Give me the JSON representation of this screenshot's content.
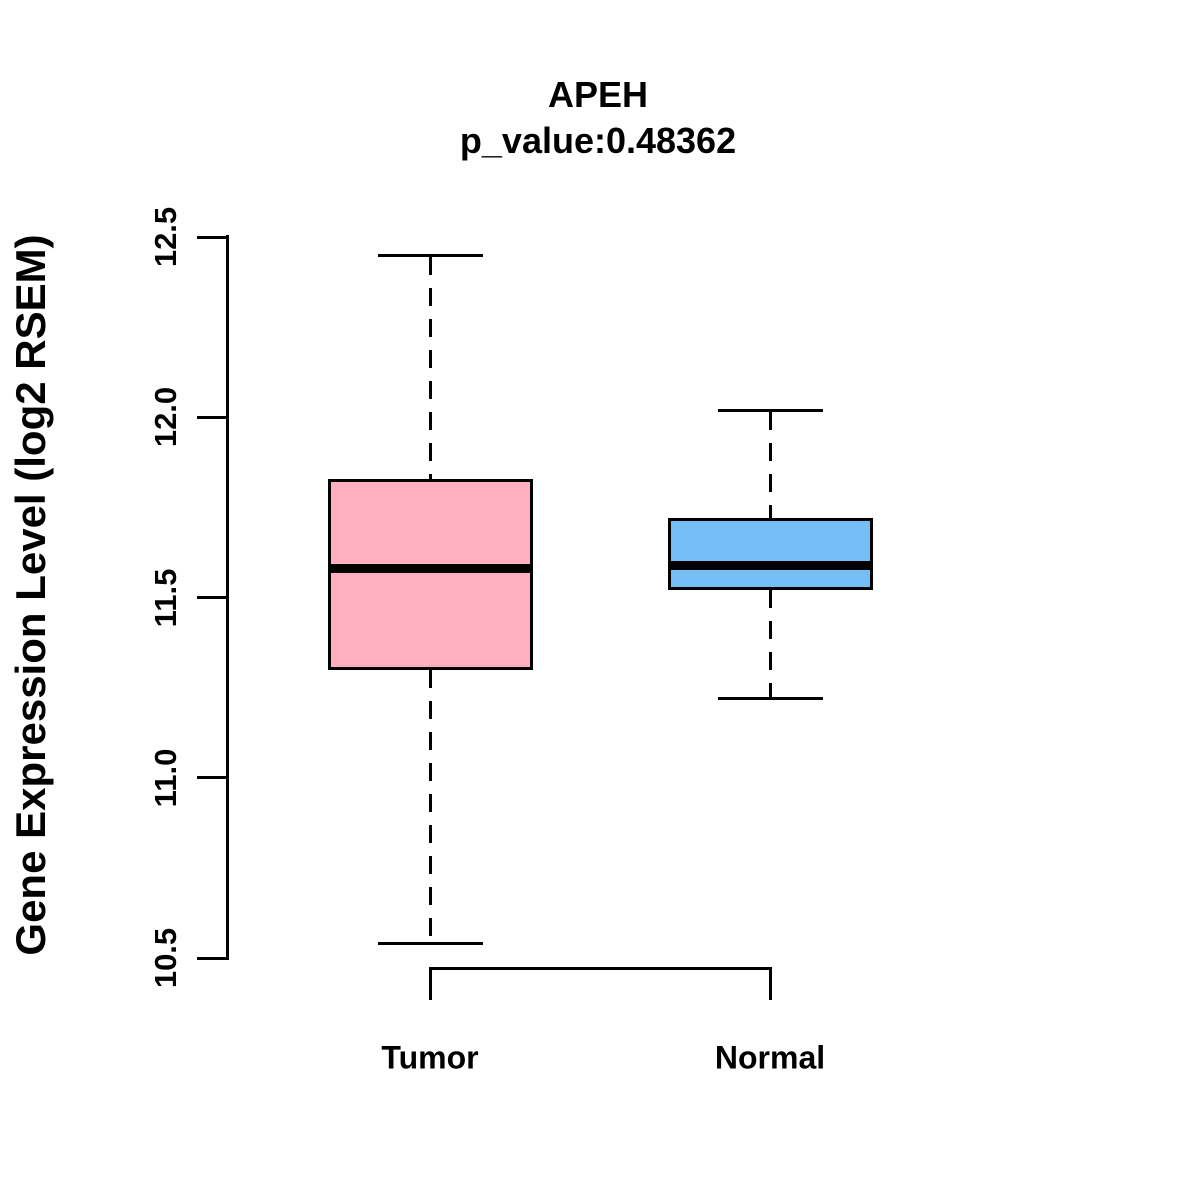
{
  "chart_data": {
    "type": "boxplot",
    "title": "APEH",
    "subtitle": "p_value:0.48362",
    "ylabel": "Gene Expression Level (log2 RSEM)",
    "xlabel": "",
    "categories": [
      "Tumor",
      "Normal"
    ],
    "ylim": [
      10.5,
      12.5
    ],
    "ytick_values": [
      10.5,
      11.0,
      11.5,
      12.0,
      12.5
    ],
    "ytick_labels": [
      "10.5",
      "11.0",
      "11.5",
      "12.0",
      "12.5"
    ],
    "grid": false,
    "legend": false,
    "whisker_style": "dashed",
    "series": [
      {
        "name": "Tumor",
        "whisker_low": 10.54,
        "q1": 11.3,
        "median": 11.58,
        "q3": 11.83,
        "whisker_high": 12.45,
        "fill_color": "#FFAFC0"
      },
      {
        "name": "Normal",
        "whisker_low": 11.22,
        "q1": 11.52,
        "median": 11.59,
        "q3": 11.72,
        "whisker_high": 12.02,
        "fill_color": "#74BEF5"
      }
    ],
    "colors": {
      "box_border": "#000000",
      "median_line": "#000000",
      "axis": "#000000",
      "text": "#000000",
      "background": "#FFFFFF"
    }
  }
}
